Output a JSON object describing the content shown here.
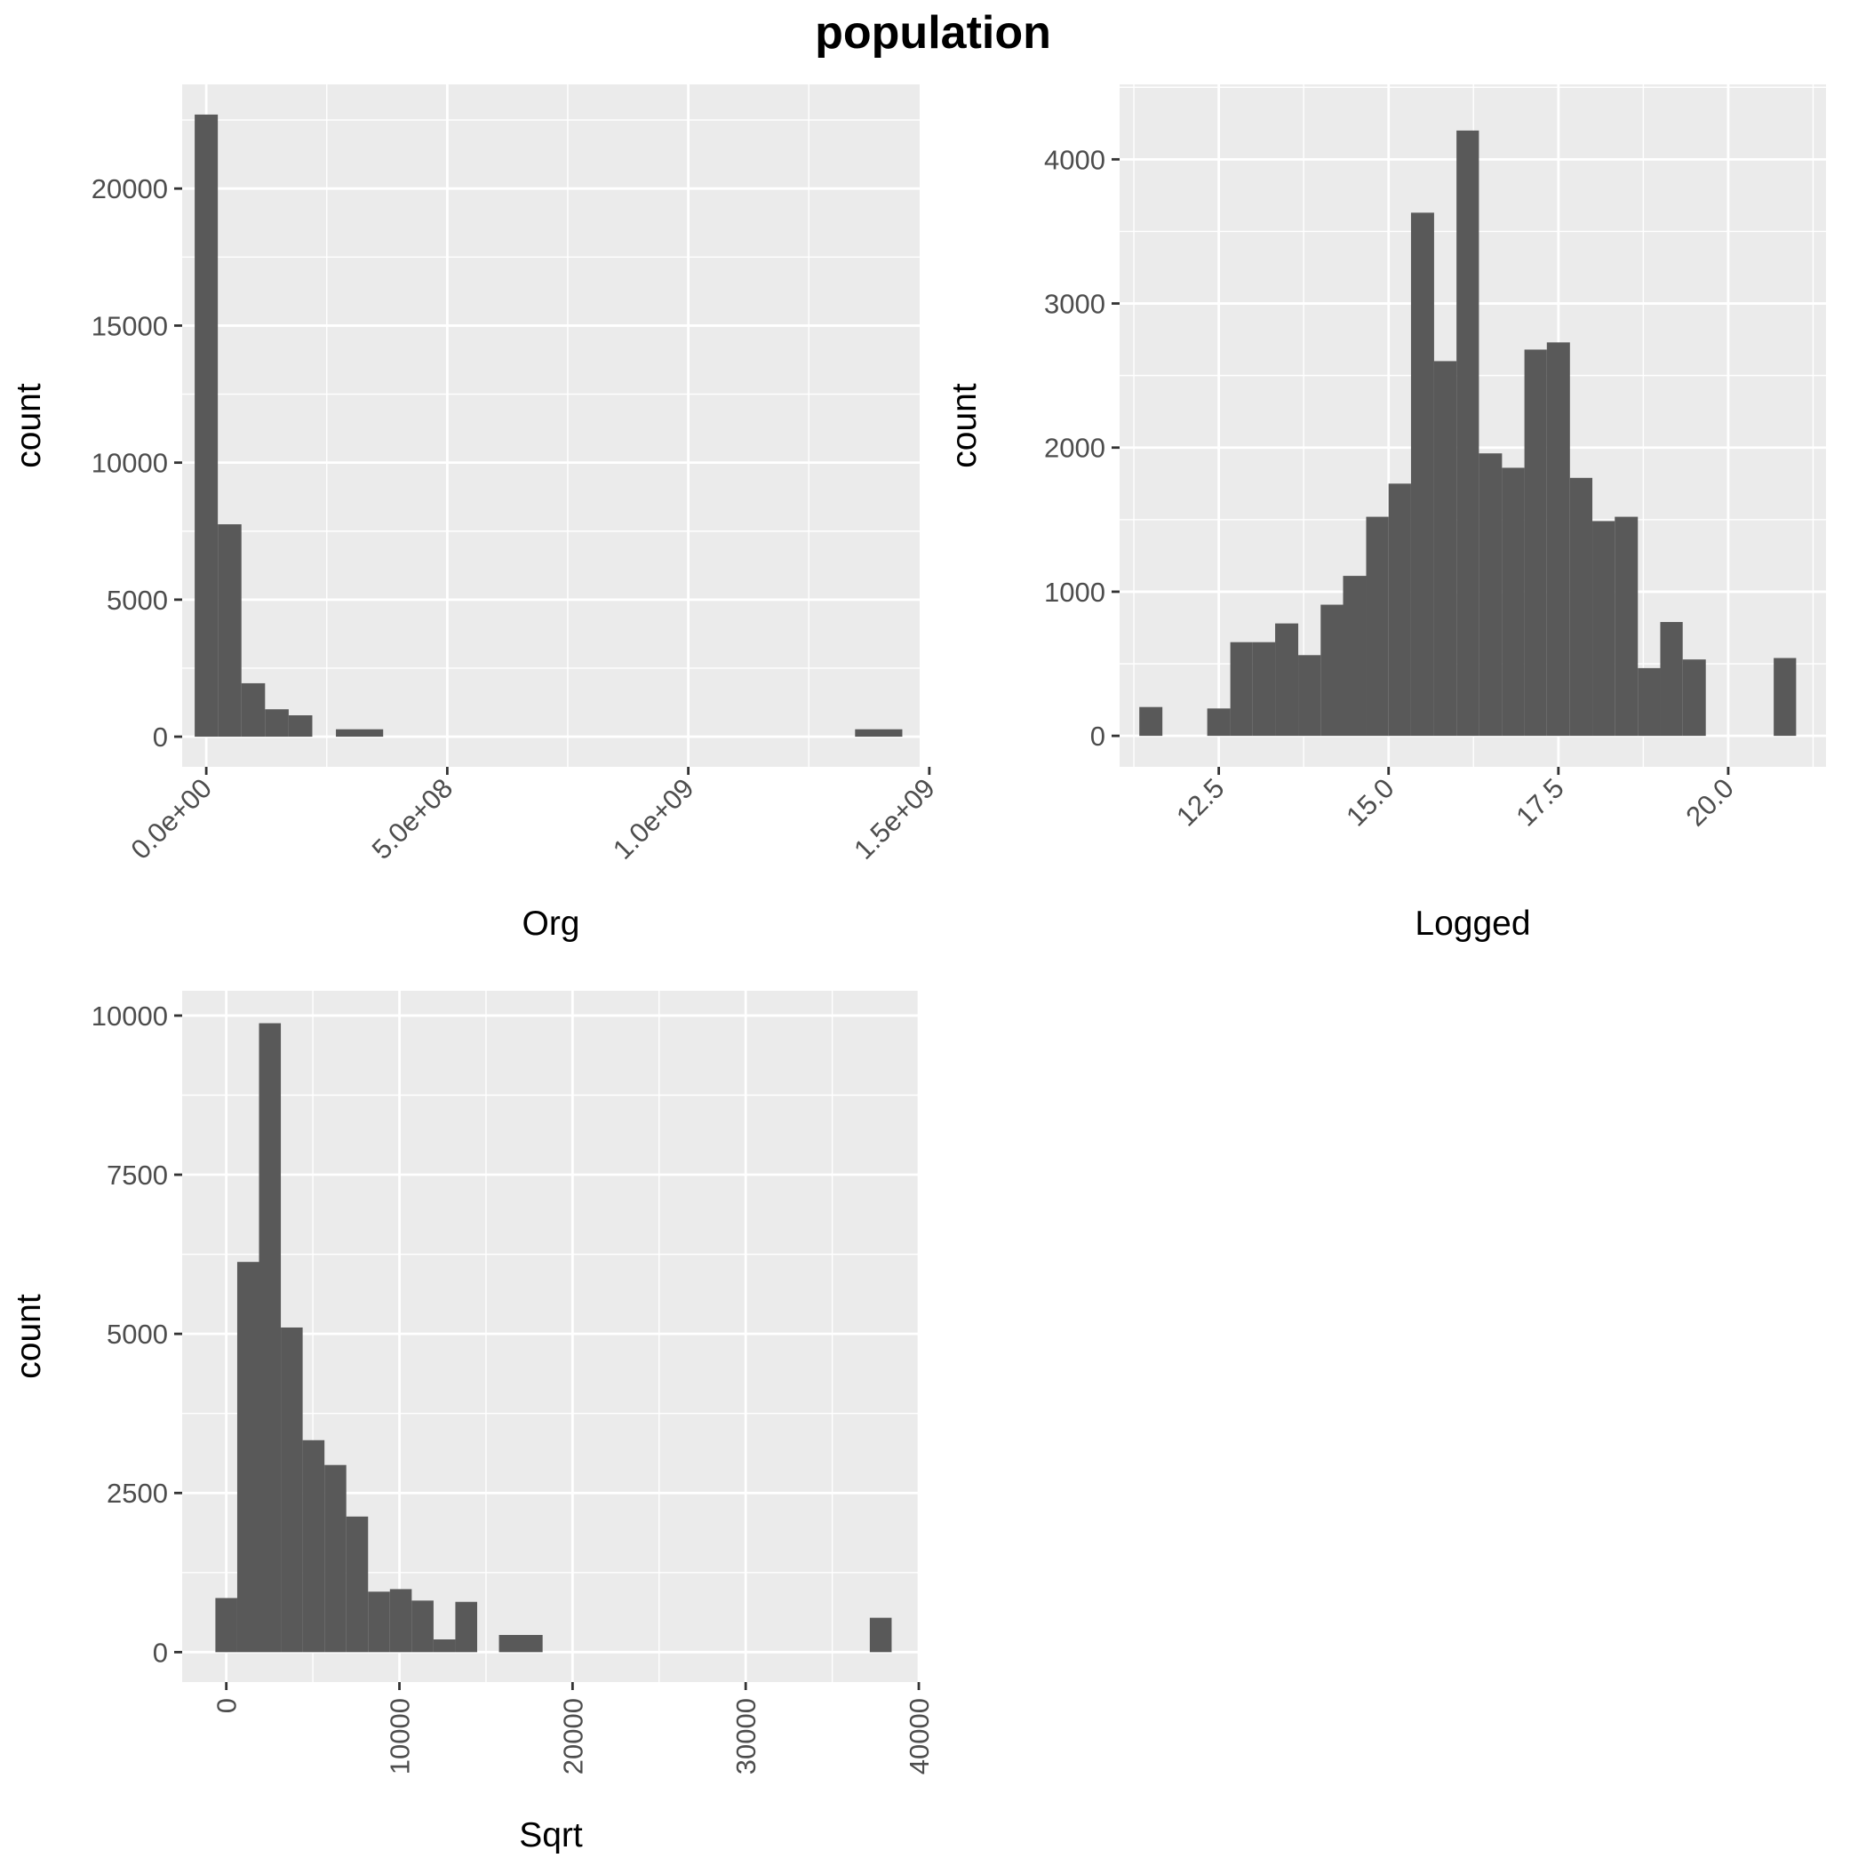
{
  "title": "population",
  "chart_data": [
    {
      "type": "bar",
      "name": "org",
      "xlabel": "Org",
      "ylabel": "count",
      "xlim": [
        -50000000.0,
        1480000000.0
      ],
      "ylim": [
        -1100,
        23800
      ],
      "x_ticks": [
        0,
        500000000,
        1000000000,
        1500000000
      ],
      "x_tick_labels": [
        "0.0e+00",
        "5.0e+08",
        "1.0e+09",
        "1.5e+09"
      ],
      "x_tick_rotation": -45,
      "y_ticks": [
        0,
        5000,
        10000,
        15000,
        20000
      ],
      "y_tick_labels": [
        "0",
        "5000",
        "10000",
        "15000",
        "20000"
      ],
      "bins": [
        {
          "x0": -24000000,
          "x1": 24000000,
          "count": 22700
        },
        {
          "x0": 24000000,
          "x1": 73000000,
          "count": 7750
        },
        {
          "x0": 73000000,
          "x1": 122000000,
          "count": 1950
        },
        {
          "x0": 122000000,
          "x1": 171000000,
          "count": 1000
        },
        {
          "x0": 171000000,
          "x1": 220000000,
          "count": 780
        },
        {
          "x0": 269000000,
          "x1": 367000000,
          "count": 270
        },
        {
          "x0": 1346000000,
          "x1": 1444000000,
          "count": 270
        }
      ]
    },
    {
      "type": "bar",
      "name": "logged",
      "xlabel": "Logged",
      "ylabel": "count",
      "xlim": [
        11.04,
        21.44
      ],
      "ylim": [
        -215,
        4520
      ],
      "x_ticks": [
        12.5,
        15.0,
        17.5,
        20.0
      ],
      "x_tick_labels": [
        "12.5",
        "15.0",
        "17.5",
        "20.0"
      ],
      "x_tick_rotation": -45,
      "y_ticks": [
        0,
        1000,
        2000,
        3000,
        4000
      ],
      "y_tick_labels": [
        "0",
        "1000",
        "2000",
        "3000",
        "4000"
      ],
      "bins": [
        {
          "x0": 11.33,
          "x1": 11.67,
          "count": 200
        },
        {
          "x0": 12.33,
          "x1": 12.67,
          "count": 190
        },
        {
          "x0": 12.67,
          "x1": 13.0,
          "count": 650
        },
        {
          "x0": 13.0,
          "x1": 13.33,
          "count": 650
        },
        {
          "x0": 13.33,
          "x1": 13.67,
          "count": 780
        },
        {
          "x0": 13.67,
          "x1": 14.0,
          "count": 560
        },
        {
          "x0": 14.0,
          "x1": 14.33,
          "count": 910
        },
        {
          "x0": 14.33,
          "x1": 14.67,
          "count": 1110
        },
        {
          "x0": 14.67,
          "x1": 15.0,
          "count": 1520
        },
        {
          "x0": 15.0,
          "x1": 15.33,
          "count": 1750
        },
        {
          "x0": 15.33,
          "x1": 15.67,
          "count": 3630
        },
        {
          "x0": 15.67,
          "x1": 16.0,
          "count": 2600
        },
        {
          "x0": 16.0,
          "x1": 16.33,
          "count": 4200
        },
        {
          "x0": 16.33,
          "x1": 16.67,
          "count": 1960
        },
        {
          "x0": 16.67,
          "x1": 17.0,
          "count": 1860
        },
        {
          "x0": 17.0,
          "x1": 17.33,
          "count": 2680
        },
        {
          "x0": 17.33,
          "x1": 17.67,
          "count": 2730
        },
        {
          "x0": 17.67,
          "x1": 18.0,
          "count": 1790
        },
        {
          "x0": 18.0,
          "x1": 18.33,
          "count": 1490
        },
        {
          "x0": 18.33,
          "x1": 18.67,
          "count": 1520
        },
        {
          "x0": 18.67,
          "x1": 19.0,
          "count": 470
        },
        {
          "x0": 19.0,
          "x1": 19.33,
          "count": 790
        },
        {
          "x0": 19.33,
          "x1": 19.67,
          "count": 530
        },
        {
          "x0": 20.67,
          "x1": 21.0,
          "count": 540
        }
      ]
    },
    {
      "type": "bar",
      "name": "sqrt",
      "xlabel": "Sqrt",
      "ylabel": "count",
      "xlim": [
        -2550,
        40050
      ],
      "ylim": [
        -470,
        10390
      ],
      "x_ticks": [
        0,
        10000,
        20000,
        30000,
        40000
      ],
      "x_tick_labels": [
        "0",
        "10000",
        "20000",
        "30000",
        "40000"
      ],
      "x_tick_rotation": -90,
      "y_ticks": [
        0,
        2500,
        5000,
        7500,
        10000
      ],
      "y_tick_labels": [
        "0",
        "2500",
        "5000",
        "7500",
        "10000"
      ],
      "bins": [
        {
          "x0": -630,
          "x1": 630,
          "count": 850
        },
        {
          "x0": 630,
          "x1": 1890,
          "count": 6130
        },
        {
          "x0": 1890,
          "x1": 3150,
          "count": 9880
        },
        {
          "x0": 3150,
          "x1": 4410,
          "count": 5100
        },
        {
          "x0": 4410,
          "x1": 5670,
          "count": 3330
        },
        {
          "x0": 5670,
          "x1": 6930,
          "count": 2940
        },
        {
          "x0": 6930,
          "x1": 8190,
          "count": 2130
        },
        {
          "x0": 8190,
          "x1": 9450,
          "count": 950
        },
        {
          "x0": 9450,
          "x1": 10710,
          "count": 990
        },
        {
          "x0": 10710,
          "x1": 11970,
          "count": 810
        },
        {
          "x0": 11970,
          "x1": 13230,
          "count": 200
        },
        {
          "x0": 13230,
          "x1": 14490,
          "count": 790
        },
        {
          "x0": 15750,
          "x1": 18270,
          "count": 270
        },
        {
          "x0": 37170,
          "x1": 38430,
          "count": 540
        }
      ]
    }
  ]
}
